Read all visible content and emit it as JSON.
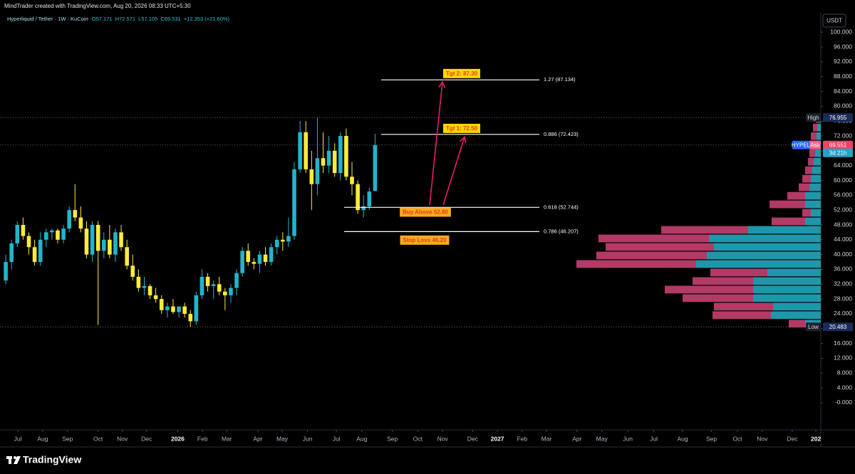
{
  "header": "MindTrader created with TradingView.com, Aug 20, 2026 08:33 UTC+5:30",
  "brand": "TradingView",
  "chart_data": {
    "type": "candlestick",
    "title": "Hyperliquid / Tether · 1W · KuCoin",
    "ohlc_prefixes": [
      "O",
      "H",
      "L",
      "C"
    ],
    "change": "+12.353 (+21.60%)",
    "currency": "USDT",
    "up_color": "#22b5cc",
    "down_color": "#ffeb3b",
    "open": [
      33,
      38,
      43,
      48,
      45,
      42,
      38,
      44,
      46,
      46.5,
      44,
      47,
      52,
      50,
      47,
      40,
      48,
      41,
      44,
      40,
      46,
      42,
      37,
      34,
      31,
      31.5,
      29,
      28,
      25,
      26,
      24.5,
      26,
      24,
      22,
      29,
      34,
      31.5,
      32,
      30,
      29,
      31,
      35,
      41,
      38,
      37.5,
      40,
      38,
      42,
      44,
      43.5,
      45,
      63,
      73,
      63,
      59,
      66,
      64,
      68,
      62,
      72,
      61,
      59,
      52,
      53,
      57.171
    ],
    "high": [
      40,
      44,
      49,
      50,
      46,
      44,
      46,
      47,
      47,
      47,
      48,
      53,
      59,
      53,
      49,
      49,
      49,
      46,
      48,
      47,
      48,
      44,
      40,
      36,
      34,
      32,
      31,
      29,
      27,
      28,
      26,
      27,
      25,
      30,
      36,
      35,
      33,
      34,
      31,
      32,
      36,
      42,
      43,
      39,
      41,
      42,
      43,
      45,
      46,
      50,
      65,
      76,
      76,
      68,
      76.955,
      73,
      72,
      70,
      73,
      74,
      65,
      60,
      56,
      58,
      72.571
    ],
    "low": [
      32,
      36,
      42,
      44,
      40,
      37,
      37,
      42,
      44,
      43,
      43,
      46,
      49,
      46,
      39,
      38,
      21,
      39,
      39,
      38,
      41,
      36,
      33,
      30,
      29,
      28,
      27,
      24,
      23,
      24,
      23,
      23,
      20.483,
      21,
      28,
      30,
      28,
      29,
      25,
      27,
      29,
      34,
      37,
      36,
      35,
      37,
      37,
      40,
      41,
      42,
      44,
      62,
      62,
      52,
      56,
      62,
      62,
      61,
      60,
      60,
      56,
      51,
      50,
      52,
      57.105
    ],
    "close": [
      38,
      43,
      48,
      45,
      42,
      38,
      44,
      46,
      46.5,
      44,
      47,
      52,
      50,
      47,
      40,
      48,
      41,
      44,
      40,
      46,
      42,
      37,
      34,
      31,
      31.5,
      29,
      28,
      25,
      26,
      24.5,
      26,
      24,
      22,
      29,
      34,
      31.5,
      32,
      30,
      29,
      31,
      35,
      41,
      38,
      37.5,
      40,
      38,
      42,
      44,
      43.5,
      45,
      63,
      73,
      63,
      59,
      66,
      64,
      68,
      62,
      72,
      61,
      59,
      52,
      53,
      57,
      69.531
    ],
    "xlim": [
      -1,
      141
    ],
    "xticks": [
      {
        "value": 2.1,
        "label": "Jul"
      },
      {
        "value": 6.4,
        "label": "Aug"
      },
      {
        "value": 10.7,
        "label": "Sep"
      },
      {
        "value": 16,
        "label": "Oct"
      },
      {
        "value": 20.2,
        "label": "Nov"
      },
      {
        "value": 24.4,
        "label": "Dec"
      },
      {
        "value": 29.8,
        "label": "2026"
      },
      {
        "value": 34.1,
        "label": "Feb"
      },
      {
        "value": 38.3,
        "label": "Mar"
      },
      {
        "value": 43.7,
        "label": "Apr"
      },
      {
        "value": 47.9,
        "label": "May"
      },
      {
        "value": 52.3,
        "label": "Jun"
      },
      {
        "value": 57.3,
        "label": "Jul"
      },
      {
        "value": 61.7,
        "label": "Aug"
      },
      {
        "value": 67,
        "label": "Sep"
      },
      {
        "value": 71.4,
        "label": "Oct"
      },
      {
        "value": 75.7,
        "label": "Nov"
      },
      {
        "value": 80.9,
        "label": "Dec"
      },
      {
        "value": 85.2,
        "label": "2027"
      },
      {
        "value": 89.5,
        "label": "Feb"
      },
      {
        "value": 93.7,
        "label": "Mar"
      },
      {
        "value": 99,
        "label": "Apr"
      },
      {
        "value": 103.3,
        "label": "May"
      },
      {
        "value": 107.8,
        "label": "Jun"
      },
      {
        "value": 112.3,
        "label": "Jul"
      },
      {
        "value": 117.3,
        "label": "Aug"
      },
      {
        "value": 122.3,
        "label": "Sep"
      },
      {
        "value": 126.8,
        "label": "Oct"
      },
      {
        "value": 131.1,
        "label": "Nov"
      },
      {
        "value": 136.3,
        "label": "Dec"
      },
      {
        "value": 140.4,
        "label": "202"
      }
    ],
    "ylim": [
      -7.3,
      103.3
    ],
    "yticks": [
      {
        "value": 100,
        "label": "100.000"
      },
      {
        "value": 96,
        "label": "96.000"
      },
      {
        "value": 92,
        "label": "92.000"
      },
      {
        "value": 88,
        "label": "88.000"
      },
      {
        "value": 84,
        "label": "84.000"
      },
      {
        "value": 80,
        "label": "80.000"
      },
      {
        "value": 76,
        "label": "76.000"
      },
      {
        "value": 72,
        "label": "72.000"
      },
      {
        "value": 68,
        "label": "68.000"
      },
      {
        "value": 64,
        "label": "64.000"
      },
      {
        "value": 60,
        "label": "60.000"
      },
      {
        "value": 56,
        "label": "56.000"
      },
      {
        "value": 52,
        "label": "52.000"
      },
      {
        "value": 48,
        "label": "48.000"
      },
      {
        "value": 44,
        "label": "44.000"
      },
      {
        "value": 40,
        "label": "40.000"
      },
      {
        "value": 36,
        "label": "36.000"
      },
      {
        "value": 32,
        "label": "32.000"
      },
      {
        "value": 28,
        "label": "28.000"
      },
      {
        "value": 24,
        "label": "24.000"
      },
      {
        "value": 20,
        "label": "20.000"
      },
      {
        "value": 16,
        "label": "16.000"
      },
      {
        "value": 12,
        "label": "12.000"
      },
      {
        "value": 8,
        "label": "8.000"
      },
      {
        "value": 4,
        "label": "4.000"
      },
      {
        "value": 0,
        "label": "-0.000"
      }
    ],
    "high_marker": {
      "text": "High",
      "value": 76.955
    },
    "low_marker": {
      "text": "Low",
      "value": 20.483
    },
    "last_marker": {
      "symbol": "HYPEL",
      "side": "Ask",
      "value": 69.551,
      "countdown": "3d 21h"
    },
    "fib_levels": [
      {
        "label": "1.27 (87.134)",
        "value": 87.134
      },
      {
        "label": "0.886 (72.423)",
        "value": 72.423
      },
      {
        "label": "0.618 (52.744)",
        "value": 52.744
      },
      {
        "label": "0.786 (46.207)",
        "value": 46.207
      }
    ],
    "annotations": [
      {
        "text": "Tgt 2: 87.30",
        "value": 87.3
      },
      {
        "text": "Tgt 1: 72.50",
        "value": 72.5
      },
      {
        "text": "Buy Above 52.80",
        "value": 52.8
      },
      {
        "text": "Stop Loss 46.20",
        "value": 46.2
      }
    ],
    "volume_profile": {
      "bins": [
        20.2,
        22.5,
        24.8,
        27.1,
        29.4,
        31.7,
        34,
        36.3,
        38.6,
        40.9,
        43.2,
        45.5,
        47.8,
        50.1,
        52.4,
        54.7,
        57,
        59.3,
        61.6,
        63.9,
        66.2,
        68.5,
        70.8,
        73.1,
        75.4,
        77.7
      ],
      "buy": [
        22,
        70,
        67,
        95,
        95,
        95,
        75,
        175,
        160,
        150,
        157,
        102,
        22,
        14,
        22,
        22,
        16,
        14,
        12,
        10,
        8,
        7,
        6,
        5,
        3
      ],
      "sell": [
        23,
        82,
        83,
        99,
        124,
        85,
        80,
        168,
        155,
        152,
        155,
        122,
        47,
        12,
        50,
        25,
        15,
        12,
        10,
        8,
        8,
        10,
        8,
        6,
        4
      ],
      "buy_color": "#1f97ab",
      "sell_color": "#b23a66",
      "xlim": [
        0,
        350
      ]
    }
  }
}
